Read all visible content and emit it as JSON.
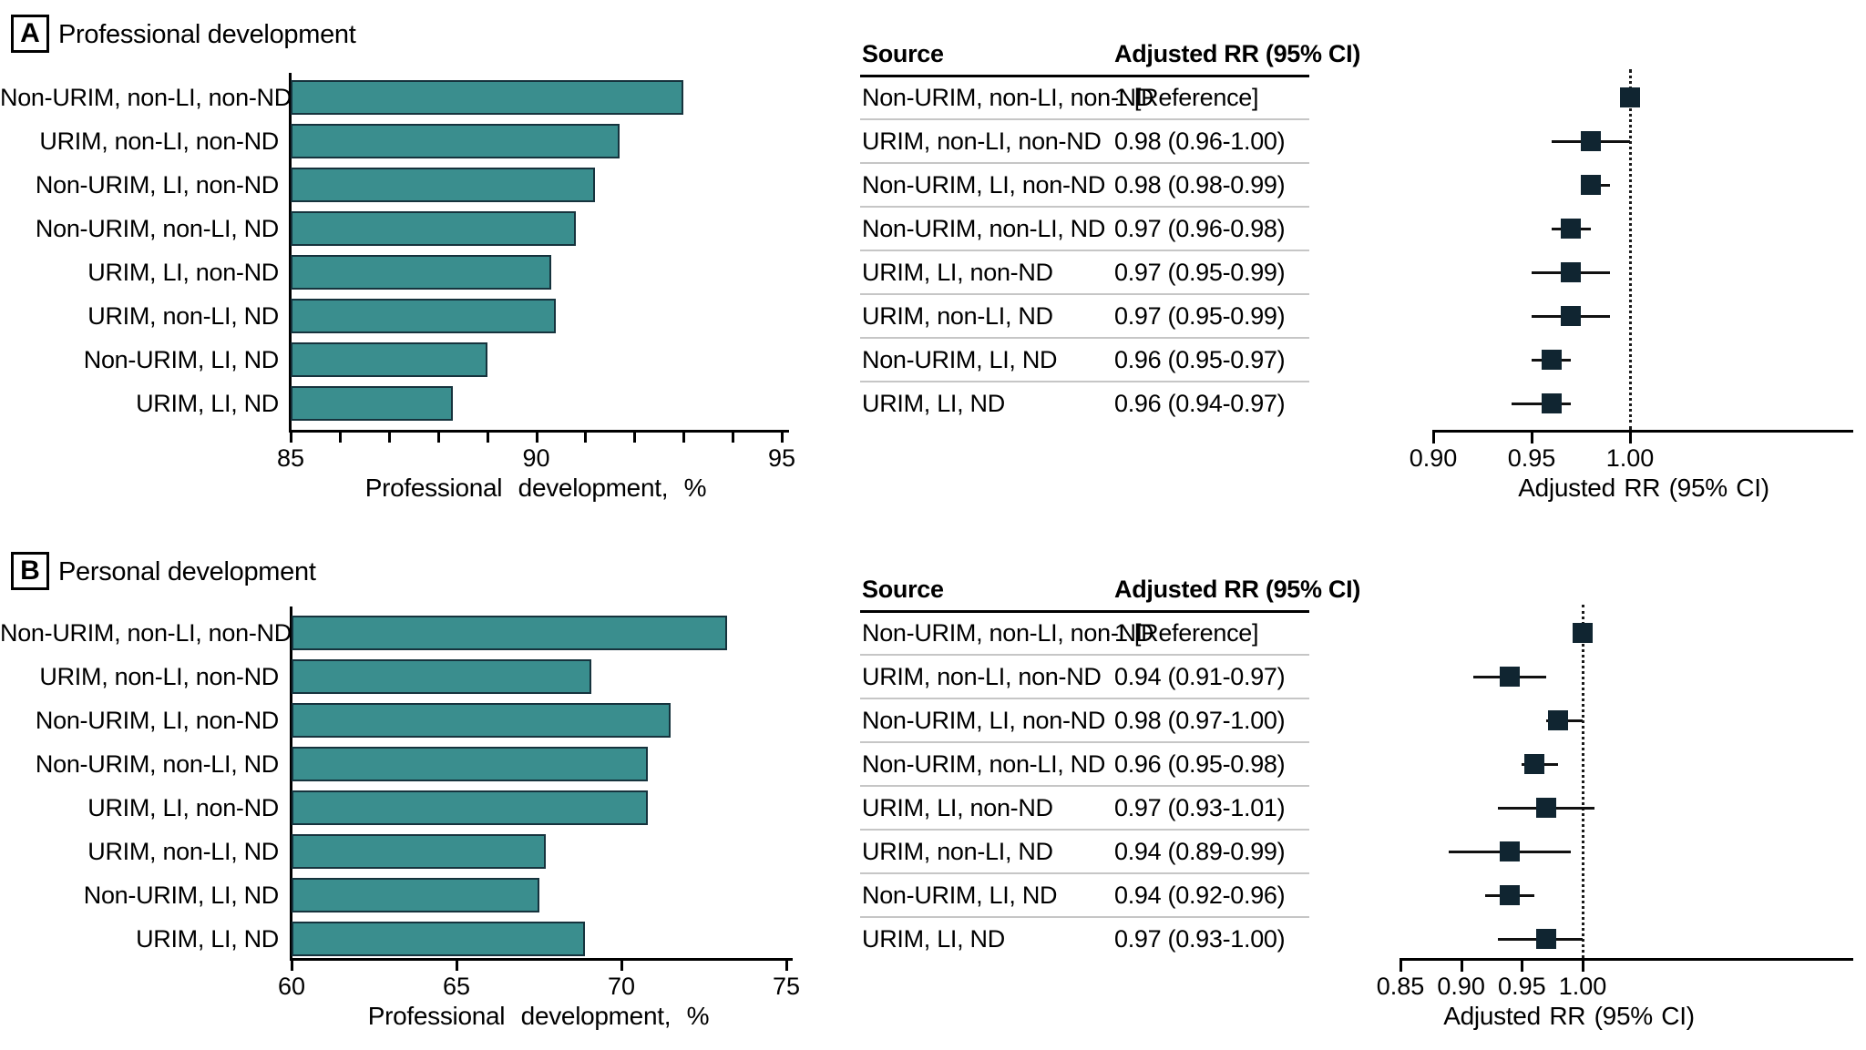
{
  "figure": {
    "panels": [
      {
        "letter": "A",
        "title": "Professional development",
        "table": {
          "col1_header": "Source",
          "col2_header": "Adjusted RR (95% CI)",
          "rows": [
            [
              "Non-URIM, non-LI, non-ND",
              "1 [Reference]"
            ],
            [
              "URIM, non-LI, non-ND",
              "0.98 (0.96-1.00)"
            ],
            [
              "Non-URIM, LI, non-ND",
              "0.98 (0.98-0.99)"
            ],
            [
              "Non-URIM, non-LI, ND",
              "0.97 (0.96-0.98)"
            ],
            [
              "URIM, LI, non-ND",
              "0.97 (0.95-0.99)"
            ],
            [
              "URIM, non-LI, ND",
              "0.97 (0.95-0.99)"
            ],
            [
              "Non-URIM, LI, ND",
              "0.96 (0.95-0.97)"
            ],
            [
              "URIM, LI, ND",
              "0.96 (0.94-0.97)"
            ]
          ]
        }
      },
      {
        "letter": "B",
        "title": "Personal development",
        "table": {
          "col1_header": "Source",
          "col2_header": "Adjusted RR (95% CI)",
          "rows": [
            [
              "Non-URIM, non-LI, non-ND",
              "1 [Reference]"
            ],
            [
              "URIM, non-LI, non-ND",
              "0.94 (0.91-0.97)"
            ],
            [
              "Non-URIM, LI, non-ND",
              "0.98 (0.97-1.00)"
            ],
            [
              "Non-URIM, non-LI, ND",
              "0.96 (0.95-0.98)"
            ],
            [
              "URIM, LI, non-ND",
              "0.97 (0.93-1.01)"
            ],
            [
              "URIM, non-LI, ND",
              "0.94 (0.89-0.99)"
            ],
            [
              "Non-URIM, LI, ND",
              "0.94 (0.92-0.96)"
            ],
            [
              "URIM, LI, ND",
              "0.97 (0.93-1.00)"
            ]
          ]
        }
      }
    ]
  },
  "chart_data": [
    {
      "type": "bar",
      "panel": "A",
      "title": "Professional development",
      "orientation": "horizontal",
      "categories": [
        "Non-URIM, non-LI, non-ND",
        "URIM, non-LI, non-ND",
        "Non-URIM, LI, non-ND",
        "Non-URIM, non-LI, ND",
        "URIM, LI, non-ND",
        "URIM, non-LI, ND",
        "Non-URIM, LI, ND",
        "URIM, LI, ND"
      ],
      "values": [
        93.0,
        91.7,
        91.2,
        90.8,
        90.3,
        90.4,
        89.0,
        88.3
      ],
      "xlabel": "Professional development, %",
      "xlim": [
        85,
        95
      ],
      "xticks": [
        85,
        90,
        95
      ],
      "minor_tick_step": 1
    },
    {
      "type": "forest",
      "panel": "A",
      "title": "Professional development",
      "xlabel": "Adjusted RR (95% CI)",
      "xlim": [
        0.9,
        1.12
      ],
      "xticks": [
        0.9,
        0.95,
        1.0
      ],
      "reference_line": 1.0,
      "points": [
        {
          "label": "Non-URIM, non-LI, non-ND",
          "rr": 1.0,
          "lo": null,
          "hi": null,
          "reference": true
        },
        {
          "label": "URIM, non-LI, non-ND",
          "rr": 0.98,
          "lo": 0.96,
          "hi": 1.0,
          "reference": false
        },
        {
          "label": "Non-URIM, LI, non-ND",
          "rr": 0.98,
          "lo": 0.98,
          "hi": 0.99,
          "reference": false
        },
        {
          "label": "Non-URIM, non-LI, ND",
          "rr": 0.97,
          "lo": 0.96,
          "hi": 0.98,
          "reference": false
        },
        {
          "label": "URIM, LI, non-ND",
          "rr": 0.97,
          "lo": 0.95,
          "hi": 0.99,
          "reference": false
        },
        {
          "label": "URIM, non-LI, ND",
          "rr": 0.97,
          "lo": 0.95,
          "hi": 0.99,
          "reference": false
        },
        {
          "label": "Non-URIM, LI, ND",
          "rr": 0.96,
          "lo": 0.95,
          "hi": 0.97,
          "reference": false
        },
        {
          "label": "URIM, LI, ND",
          "rr": 0.96,
          "lo": 0.94,
          "hi": 0.97,
          "reference": false
        }
      ]
    },
    {
      "type": "bar",
      "panel": "B",
      "title": "Personal development",
      "orientation": "horizontal",
      "categories": [
        "Non-URIM, non-LI, non-ND",
        "URIM, non-LI, non-ND",
        "Non-URIM, LI, non-ND",
        "Non-URIM, non-LI, ND",
        "URIM, LI, non-ND",
        "URIM, non-LI, ND",
        "Non-URIM, LI, ND",
        "URIM, LI, ND"
      ],
      "values": [
        73.2,
        69.1,
        71.5,
        70.8,
        70.8,
        67.7,
        67.5,
        68.9
      ],
      "xlabel": "Professional development, %",
      "xlim": [
        60,
        75
      ],
      "xticks": [
        60,
        65,
        70,
        75
      ],
      "minor_tick_step": null
    },
    {
      "type": "forest",
      "panel": "B",
      "title": "Personal development",
      "xlabel": "Adjusted RR (95% CI)",
      "xlim": [
        0.85,
        1.22
      ],
      "xticks": [
        0.85,
        0.9,
        0.95,
        1.0
      ],
      "reference_line": 1.0,
      "points": [
        {
          "label": "Non-URIM, non-LI, non-ND",
          "rr": 1.0,
          "lo": null,
          "hi": null,
          "reference": true
        },
        {
          "label": "URIM, non-LI, non-ND",
          "rr": 0.94,
          "lo": 0.91,
          "hi": 0.97,
          "reference": false
        },
        {
          "label": "Non-URIM, LI, non-ND",
          "rr": 0.98,
          "lo": 0.97,
          "hi": 1.0,
          "reference": false
        },
        {
          "label": "Non-URIM, non-LI, ND",
          "rr": 0.96,
          "lo": 0.95,
          "hi": 0.98,
          "reference": false
        },
        {
          "label": "URIM, LI, non-ND",
          "rr": 0.97,
          "lo": 0.93,
          "hi": 1.01,
          "reference": false
        },
        {
          "label": "URIM, non-LI, ND",
          "rr": 0.94,
          "lo": 0.89,
          "hi": 0.99,
          "reference": false
        },
        {
          "label": "Non-URIM, LI, ND",
          "rr": 0.94,
          "lo": 0.92,
          "hi": 0.96,
          "reference": false
        },
        {
          "label": "URIM, LI, ND",
          "rr": 0.97,
          "lo": 0.93,
          "hi": 1.0,
          "reference": false
        }
      ]
    }
  ],
  "colors": {
    "bar_fill": "#3a8e8e",
    "bar_border": "#16333d",
    "marker": "#102531",
    "separator": "#c6c6c6",
    "axis": "#000000",
    "text": "#000000"
  }
}
